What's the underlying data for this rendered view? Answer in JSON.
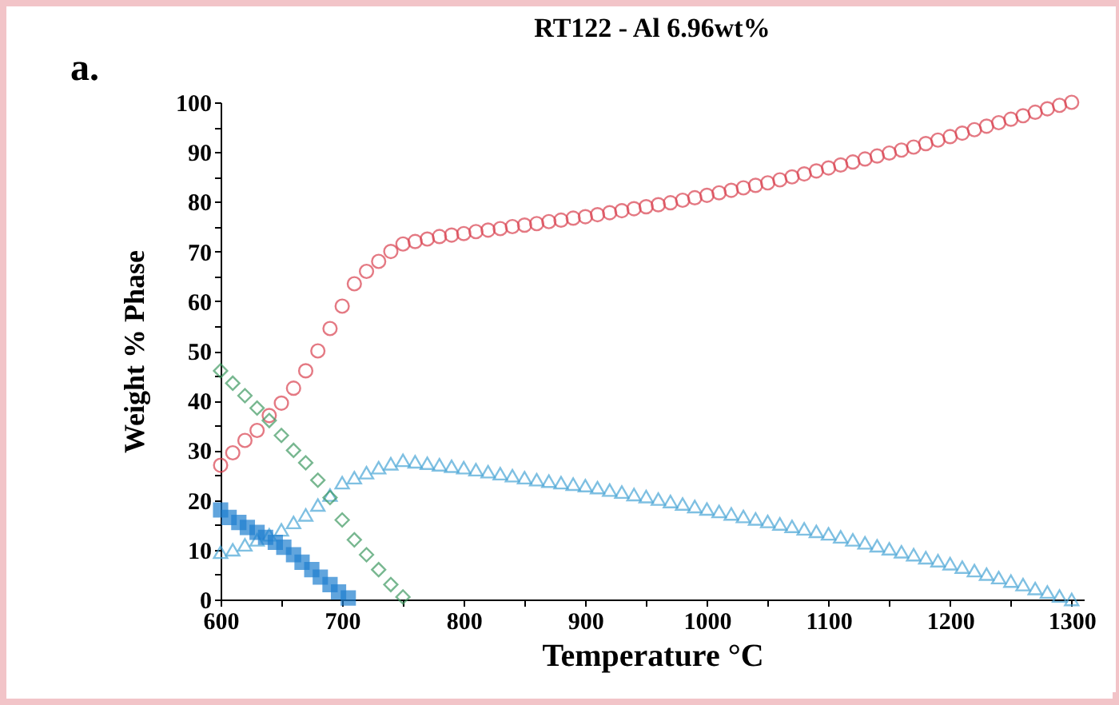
{
  "chart_data": {
    "type": "scatter",
    "title": "RT122 - Al 6.96wt%",
    "xlabel": "Temperature °C",
    "ylabel": "Weight % Phase",
    "annotations": [
      "a."
    ],
    "xlim": [
      600,
      1310
    ],
    "ylim": [
      0,
      100
    ],
    "xticks": [
      600,
      {
        "value": 650,
        "label": null
      },
      700,
      {
        "value": 750,
        "label": null
      },
      800,
      {
        "value": 850,
        "label": null
      },
      900,
      {
        "value": 950,
        "label": null
      },
      1000,
      {
        "value": 1050,
        "label": null
      },
      1100,
      {
        "value": 1150,
        "label": null
      },
      1200,
      {
        "value": 1250,
        "label": null
      },
      1300
    ],
    "yticks": [
      0,
      {
        "value": 5,
        "label": null
      },
      10,
      {
        "value": 15,
        "label": null
      },
      20,
      {
        "value": 25,
        "label": null
      },
      30,
      {
        "value": 35,
        "label": null
      },
      40,
      {
        "value": 45,
        "label": null
      },
      50,
      {
        "value": 55,
        "label": null
      },
      60,
      {
        "value": 65,
        "label": null
      },
      70,
      {
        "value": 75,
        "label": null
      },
      80,
      {
        "value": 85,
        "label": null
      },
      90,
      {
        "value": 95,
        "label": null
      },
      100
    ],
    "grid": false,
    "x": [
      600,
      610,
      620,
      630,
      640,
      650,
      660,
      670,
      680,
      690,
      700,
      710,
      720,
      730,
      740,
      750,
      760,
      770,
      780,
      790,
      800,
      810,
      820,
      830,
      840,
      850,
      860,
      870,
      880,
      890,
      900,
      910,
      920,
      930,
      940,
      950,
      960,
      970,
      980,
      990,
      1000,
      1010,
      1020,
      1030,
      1040,
      1050,
      1060,
      1070,
      1080,
      1090,
      1100,
      1110,
      1120,
      1130,
      1140,
      1150,
      1160,
      1170,
      1180,
      1190,
      1200,
      1210,
      1220,
      1230,
      1240,
      1250,
      1260,
      1270,
      1280,
      1290,
      1300
    ],
    "series": [
      {
        "color": "#d9414f",
        "marker": "circle",
        "values": [
          27,
          29.5,
          32,
          34,
          37,
          39.5,
          42.5,
          46,
          50,
          54.5,
          59,
          63.5,
          66,
          68,
          70,
          71.5,
          72,
          72.5,
          73,
          73.3,
          73.6,
          74,
          74.3,
          74.6,
          75,
          75.3,
          75.6,
          76,
          76.3,
          76.7,
          77,
          77.4,
          77.8,
          78.2,
          78.6,
          79,
          79.4,
          79.8,
          80.3,
          80.8,
          81.3,
          81.8,
          82.3,
          82.8,
          83.3,
          83.8,
          84.4,
          85,
          85.6,
          86.2,
          86.8,
          87.4,
          88,
          88.6,
          89.2,
          89.8,
          90.4,
          91,
          91.7,
          92.4,
          93.1,
          93.8,
          94.5,
          95.2,
          95.9,
          96.6,
          97.3,
          98,
          98.7,
          99.4,
          100
        ]
      },
      {
        "color": "#4aa6d6",
        "marker": "triangle",
        "values": [
          9.5,
          10,
          11,
          12,
          13,
          14,
          15.5,
          17,
          19,
          21,
          23.5,
          24.5,
          25.5,
          26.5,
          27.3,
          28,
          27.7,
          27.4,
          27.1,
          26.8,
          26.5,
          26.1,
          25.7,
          25.3,
          24.9,
          24.5,
          24.1,
          23.8,
          23.5,
          23.2,
          22.9,
          22.5,
          22,
          21.6,
          21.1,
          20.7,
          20.2,
          19.7,
          19.2,
          18.7,
          18.2,
          17.7,
          17.2,
          16.7,
          16.2,
          15.7,
          15.2,
          14.7,
          14.2,
          13.7,
          13.2,
          12.6,
          12,
          11.4,
          10.8,
          10.2,
          9.6,
          9,
          8.4,
          7.8,
          7.2,
          6.5,
          5.8,
          5.1,
          4.4,
          3.7,
          3,
          2.2,
          1.5,
          0.7,
          0
        ]
      },
      {
        "color": "#3f9a62",
        "marker": "diamond",
        "x": [
          600,
          610,
          620,
          630,
          640,
          650,
          660,
          670,
          680,
          690,
          700,
          710,
          720,
          730,
          740,
          750
        ],
        "values": [
          46,
          43.5,
          41,
          38.5,
          36,
          33,
          30,
          27.5,
          24,
          20.5,
          16,
          12,
          9,
          6,
          3,
          0.5
        ]
      },
      {
        "color": "#1f7fd0",
        "marker": "square",
        "x": [
          600,
          607,
          615,
          622,
          630,
          637,
          645,
          652,
          660,
          667,
          675,
          682,
          690,
          697,
          705
        ],
        "values": [
          18,
          16.5,
          15.5,
          14.5,
          13.5,
          12.5,
          11.5,
          10.5,
          9,
          7.5,
          6,
          4.5,
          3,
          1.5,
          0.3
        ]
      }
    ]
  }
}
